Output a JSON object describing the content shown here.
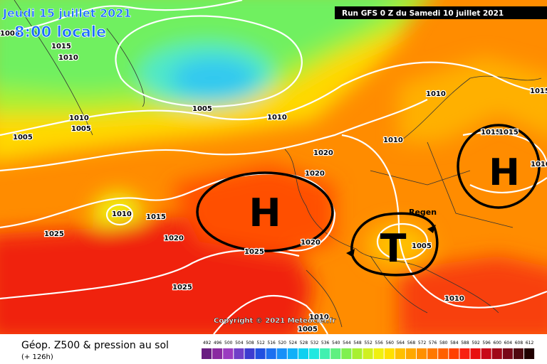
{
  "header": {
    "date": "Jeudi 15 juillet 2021",
    "time": "8:00 locale",
    "run": "Run GFS 0 Z du Samedi 10 juillet 2021"
  },
  "systems": [
    {
      "label": "H"
    },
    {
      "label": "H"
    },
    {
      "label": "T"
    }
  ],
  "annotation": "Regen",
  "copyright": "Copyright © 2021 Meteociel.fr",
  "isobar_labels": [
    "1005",
    "1015",
    "1010",
    "1005",
    "1010",
    "1010",
    "1005",
    "1005",
    "1020",
    "1020",
    "1010",
    "1010",
    "1015",
    "1015",
    "1015",
    "1010",
    "1015",
    "1020",
    "1025",
    "1025",
    "1025",
    "1020",
    "1005",
    "1010",
    "1010",
    "1005",
    "1010"
  ],
  "footer": {
    "title": "Géop. Z500 & pression au sol",
    "lead": "(+ 126h)"
  },
  "legend": {
    "labels": [
      492,
      496,
      500,
      504,
      508,
      512,
      516,
      520,
      524,
      528,
      532,
      536,
      540,
      544,
      548,
      552,
      556,
      560,
      564,
      568,
      572,
      576,
      580,
      584,
      588,
      592,
      596,
      600,
      604,
      608,
      612
    ],
    "colors": [
      "#6a1e82",
      "#8a2aa0",
      "#9b3cc0",
      "#7040c8",
      "#3c3cd0",
      "#2050e0",
      "#1c70f0",
      "#1890f8",
      "#10b0f8",
      "#10d0f0",
      "#20e8e0",
      "#40f0b0",
      "#60f080",
      "#80f050",
      "#a8f030",
      "#d0f020",
      "#f0f010",
      "#ffe000",
      "#ffc000",
      "#ffa800",
      "#ff9000",
      "#ff7800",
      "#ff6000",
      "#ff4000",
      "#f82010",
      "#e81010",
      "#c80818",
      "#a00818",
      "#780818",
      "#500810",
      "#200000"
    ]
  }
}
